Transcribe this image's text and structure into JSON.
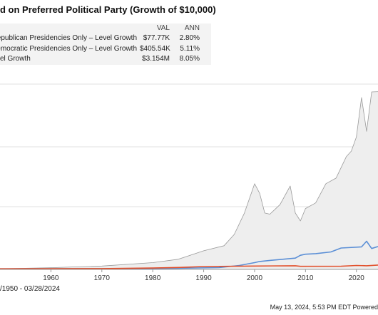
{
  "chart_data": {
    "type": "area",
    "title": "d on Preferred Political Party (Growth of $10,000)",
    "legend": {
      "columns": [
        "VAL",
        "ANN"
      ],
      "rows": [
        {
          "name": "uring Republican Presidencies Only – Level Growth",
          "val": "$77.77K",
          "ann": "2.80%"
        },
        {
          "name": "uring Democratic Presidencies Only – Level Growth",
          "val": "$405.54K",
          "ann": "5.11%"
        },
        {
          "name": "el Growth",
          "val": "$3.154M",
          "ann": "8.05%"
        }
      ]
    },
    "x_ticks": [
      "1960",
      "1970",
      "1980",
      "1990",
      "2000",
      "2010",
      "2020"
    ],
    "xlim": [
      1950,
      2024.24
    ],
    "date_range": "/1950 - 03/28/2024",
    "footer": "May 13, 2024, 5:53 PM EDT Powered",
    "series": [
      {
        "color": "#9a9a9a",
        "fill": "#eeeeee",
        "x": [
          1950,
          1960,
          1970,
          1980,
          1985,
          1990,
          1994,
          1996,
          1998,
          2000,
          2001,
          2002,
          2003,
          2005,
          2007,
          2008,
          2009,
          2010,
          2012,
          2014,
          2016,
          2018,
          2019,
          2020,
          2021,
          2022,
          2023,
          2024.24
        ],
        "values": [
          10000,
          30000,
          60000,
          120000,
          180000,
          330000,
          420000,
          620000,
          1000000,
          1520000,
          1350000,
          1000000,
          980000,
          1150000,
          1480000,
          1000000,
          860000,
          1080000,
          1180000,
          1520000,
          1620000,
          2000000,
          2100000,
          2350000,
          3050000,
          2450000,
          3150000,
          3154000
        ]
      },
      {
        "color": "#5b8fd6",
        "x": [
          1950,
          1970,
          1985,
          1993,
          1997,
          2000,
          2001,
          2003,
          2008,
          2009,
          2010,
          2012,
          2015,
          2017,
          2021,
          2022,
          2023,
          2024.24
        ],
        "values": [
          10000,
          12000,
          20000,
          32000,
          70000,
          120000,
          140000,
          160000,
          200000,
          250000,
          270000,
          280000,
          310000,
          380000,
          400000,
          500000,
          370000,
          405540
        ]
      },
      {
        "color": "#e2502c",
        "x": [
          1950,
          1970,
          1980,
          1985,
          1990,
          2000,
          2008,
          2009,
          2017,
          2020,
          2022,
          2024.24
        ],
        "values": [
          10000,
          14000,
          24000,
          34000,
          50000,
          60000,
          64000,
          55000,
          56000,
          70000,
          65000,
          77770
        ]
      }
    ]
  }
}
